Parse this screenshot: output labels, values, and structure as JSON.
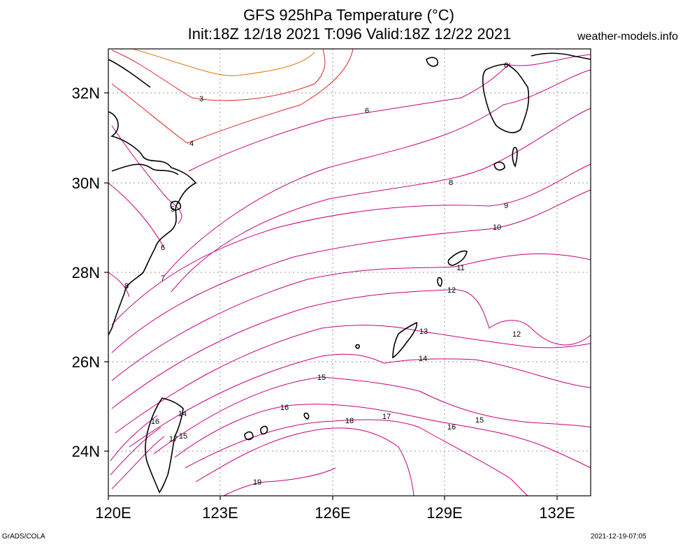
{
  "title_line1": "GFS 925hPa Temperature (°C)",
  "title_line2": "Init:18Z 12/18 2021 T:096 Valid:18Z 12/22 2021",
  "site": "weather-models.info",
  "footer_left": "GrADS/COLA",
  "footer_right": "2021-12-19-07:05",
  "axes": {
    "lon_labels": [
      "120E",
      "123E",
      "126E",
      "129E",
      "132E"
    ],
    "lat_labels": [
      "32N",
      "30N",
      "28N",
      "26N",
      "24N"
    ]
  },
  "colors": {
    "frame": "#000000",
    "grid": "#9a9a9a",
    "coast": "#000000",
    "contour_magenta": "#c8007d",
    "contour_red": "#dc2828",
    "contour_orange": "#e07a10"
  },
  "contour_labels": [
    {
      "text": "3"
    },
    {
      "text": "4"
    },
    {
      "text": "5"
    },
    {
      "text": "6"
    },
    {
      "text": "6"
    },
    {
      "text": "6"
    },
    {
      "text": "7"
    },
    {
      "text": "8"
    },
    {
      "text": "8"
    },
    {
      "text": "9"
    },
    {
      "text": "10"
    },
    {
      "text": "11"
    },
    {
      "text": "12"
    },
    {
      "text": "12"
    },
    {
      "text": "13"
    },
    {
      "text": "14"
    },
    {
      "text": "14"
    },
    {
      "text": "15"
    },
    {
      "text": "15"
    },
    {
      "text": "15"
    },
    {
      "text": "16"
    },
    {
      "text": "16"
    },
    {
      "text": "16"
    },
    {
      "text": "17"
    },
    {
      "text": "17"
    },
    {
      "text": "18"
    },
    {
      "text": "19"
    }
  ]
}
